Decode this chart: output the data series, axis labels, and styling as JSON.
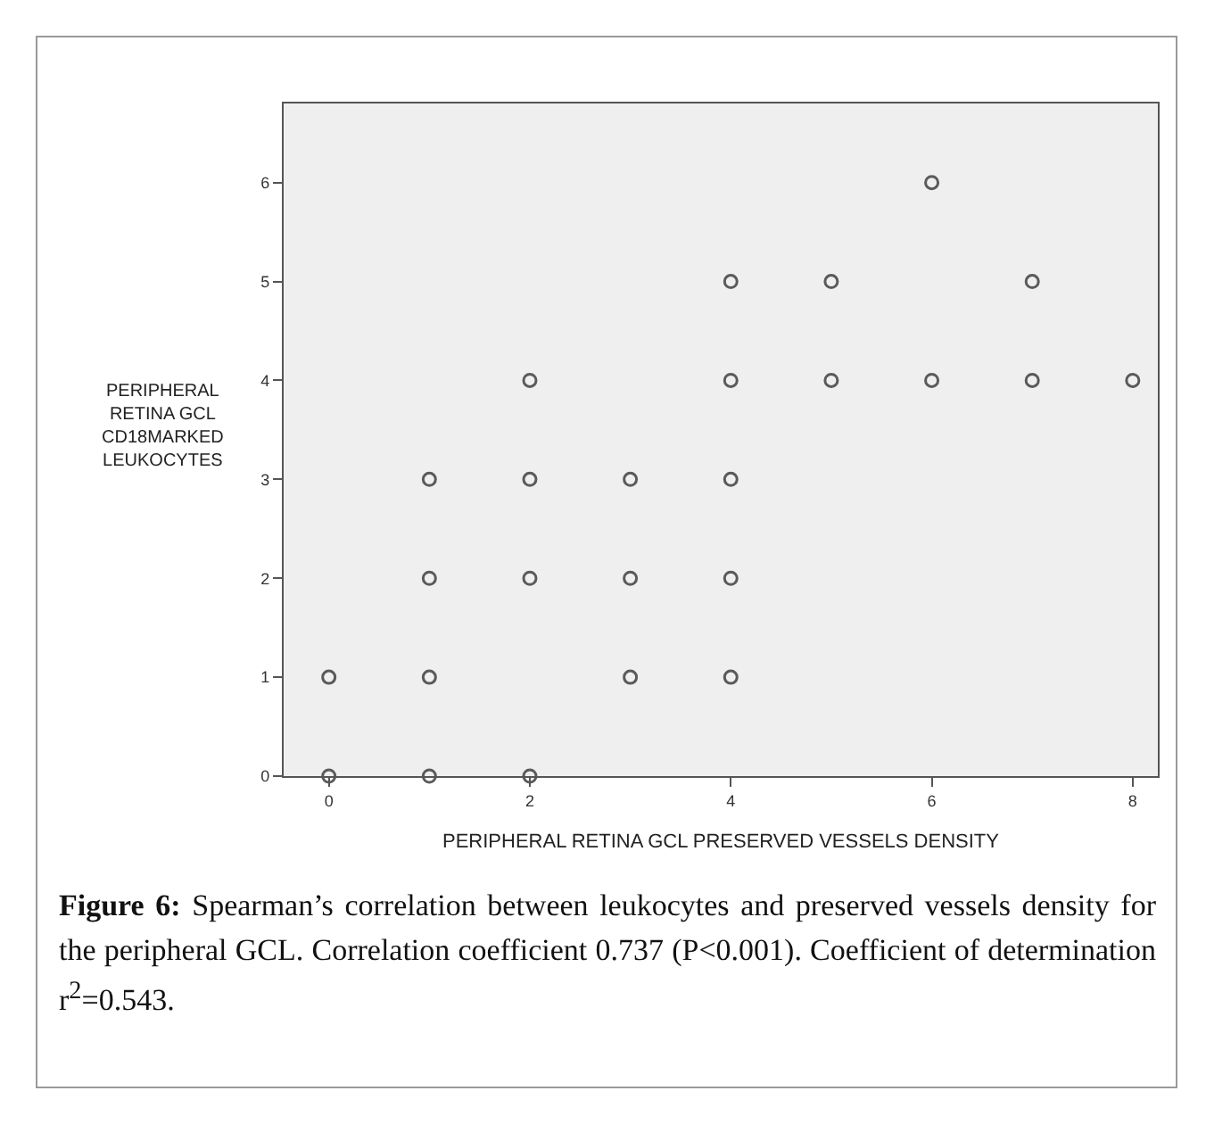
{
  "chart_data": {
    "type": "scatter",
    "xlabel": "PERIPHERAL RETINA GCL PRESERVED VESSELS DENSITY",
    "ylabel": "PERIPHERAL\nRETINA GCL\nCD18MARKED\nLEUKOCYTES",
    "x": [
      0,
      0,
      1,
      1,
      1,
      1,
      2,
      2,
      2,
      2,
      3,
      3,
      3,
      4,
      4,
      4,
      4,
      4,
      5,
      5,
      6,
      6,
      7,
      7,
      8
    ],
    "values": [
      0,
      1,
      0,
      1,
      2,
      3,
      0,
      2,
      3,
      4,
      1,
      2,
      3,
      1,
      2,
      3,
      4,
      5,
      4,
      5,
      4,
      6,
      4,
      5,
      4
    ],
    "color": "#5a5a5a",
    "marker": "circle",
    "xlim": [
      -0.45,
      8.25
    ],
    "ylim": [
      0,
      6.8
    ],
    "xticks": [
      0,
      2,
      4,
      6,
      8
    ],
    "yticks": [
      0,
      1,
      2,
      3,
      4,
      5,
      6
    ],
    "annotations": [
      "Figure 6: Spearman’s correlation between leukocytes and preserved vessels density for the peripheral GCL. Correlation coefficient 0.737 (P<0.001). Coefficient of determination r$^{2}$=0.543."
    ]
  }
}
